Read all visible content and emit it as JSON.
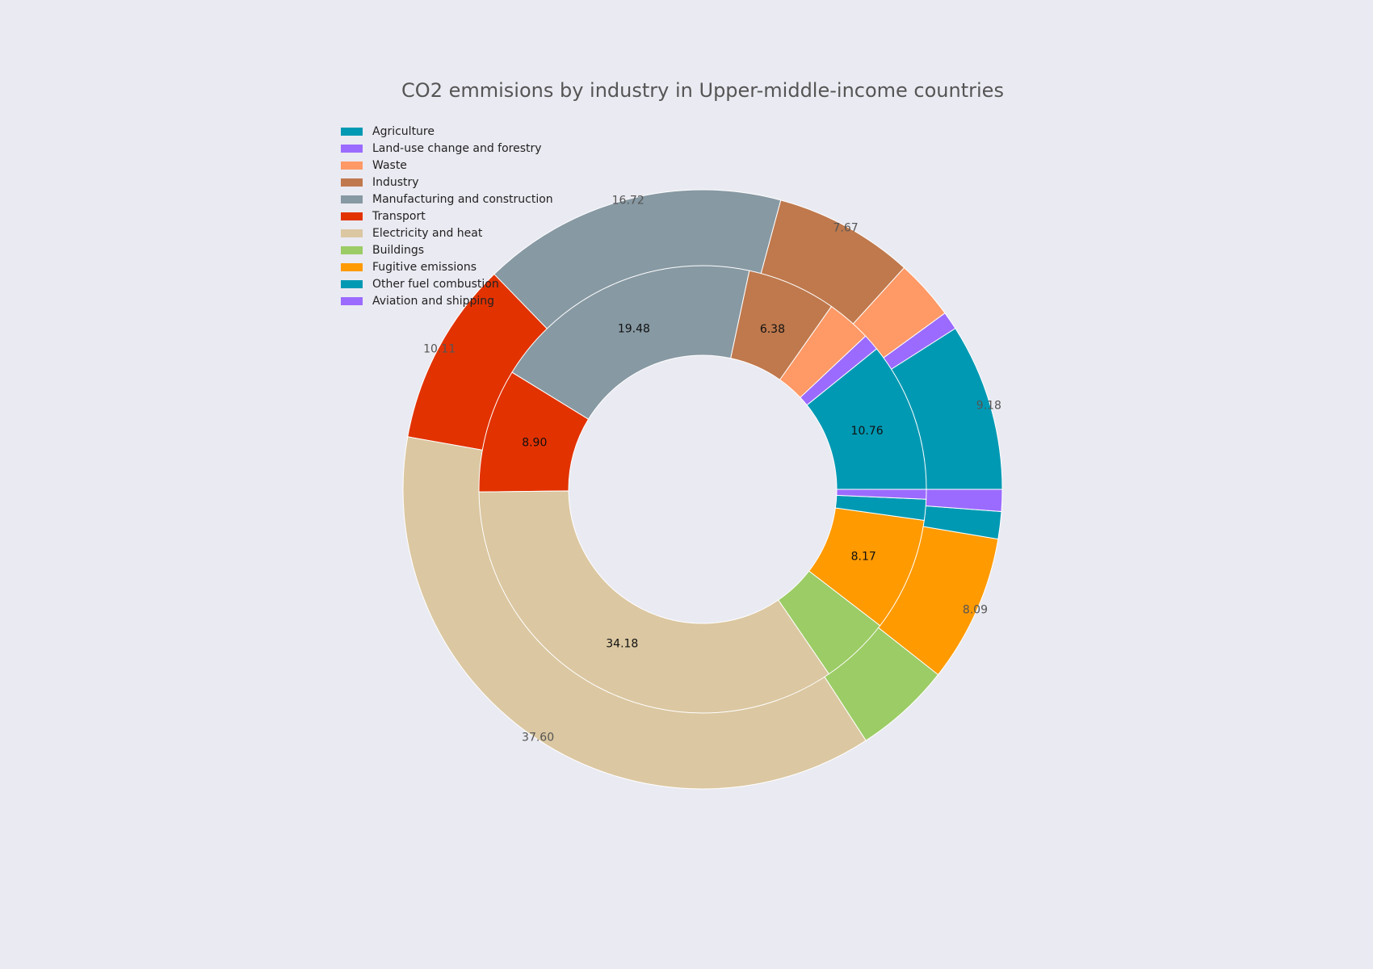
{
  "chart_data": {
    "type": "pie",
    "title": "CO2 emmisions by industry in Upper-middle-income countries",
    "legend_placement": "top-left",
    "categories": [
      "Agriculture",
      "Land-use change and forestry",
      "Waste",
      "Industry",
      "Manufacturing and construction",
      "Transport",
      "Electricity and heat",
      "Buildings",
      "Fugitive emissions",
      "Other fuel combustion",
      "Aviation and shipping"
    ],
    "colors": [
      "#0099b3",
      "#9b6bff",
      "#ff9966",
      "#bf794d",
      "#8799a3",
      "#e23200",
      "#dbc7a1",
      "#9ccc66",
      "#ff9a00",
      "#0099b3",
      "#9b6bff"
    ],
    "series": [
      {
        "ring": "outer",
        "values": [
          9.18,
          1.0,
          3.3,
          7.67,
          16.72,
          10.11,
          37.6,
          5.3,
          8.09,
          1.5,
          1.2
        ],
        "data_labels": [
          "9.18",
          "",
          "",
          "7.67",
          "16.72",
          "10.11",
          "37.60",
          "",
          "8.09",
          "",
          ""
        ]
      },
      {
        "ring": "inner",
        "values": [
          10.76,
          1.2,
          3.2,
          6.38,
          19.48,
          8.9,
          34.18,
          5.0,
          8.17,
          1.5,
          0.7
        ],
        "data_labels": [
          "10.76",
          "",
          "",
          "6.38",
          "19.48",
          "8.90",
          "34.18",
          "",
          "8.17",
          "",
          ""
        ]
      }
    ]
  }
}
